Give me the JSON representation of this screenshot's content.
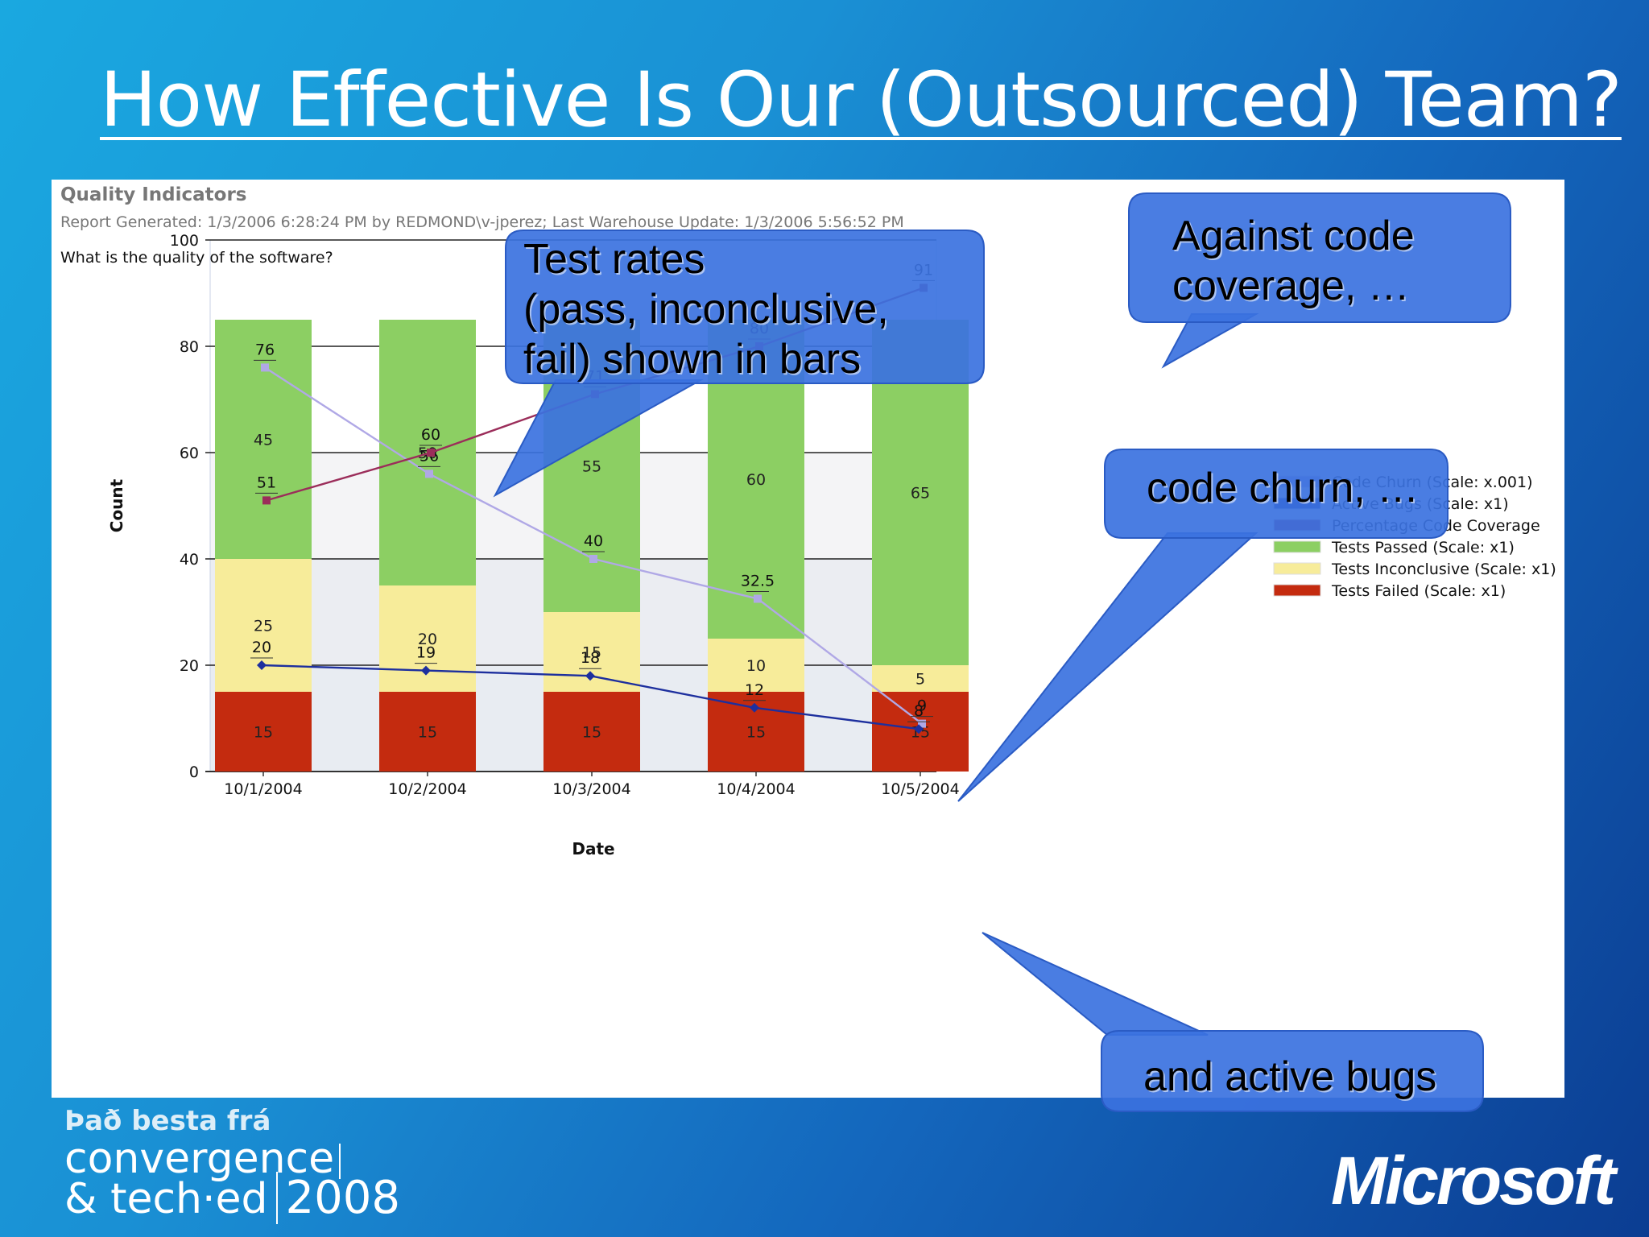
{
  "slide": {
    "title": "How Effective Is Our (Outsourced) Team?"
  },
  "report": {
    "title": "Quality Indicators",
    "meta": "Report Generated: 1/3/2006 6:28:24 PM by REDMOND\\v-jperez; Last Warehouse Update: 1/3/2006 5:56:52 PM",
    "question": "What is the quality of the software?"
  },
  "callouts": [
    {
      "id": "test-rates",
      "lines": [
        "Test rates",
        "(pass, inconclusive,",
        "fail) shown in bars"
      ]
    },
    {
      "id": "code-coverage",
      "lines": [
        "Against code",
        "coverage, …"
      ]
    },
    {
      "id": "code-churn",
      "lines": [
        "code churn, …"
      ]
    },
    {
      "id": "active-bugs",
      "lines": [
        "and active bugs"
      ]
    }
  ],
  "branding": {
    "tagline": "Það besta frá",
    "line1": "convergence",
    "line2": "& tech·ed",
    "year": "2008",
    "company": "Microsoft"
  },
  "colors": {
    "passed": "#8ccf63",
    "inconclusive": "#f7ec9a",
    "failed": "#c42b0f",
    "churn": "#b0a8e6",
    "bugs": "#1d2f9e",
    "coverage": "#9b2d5a",
    "callout": "#3b72e0"
  },
  "chart_data": {
    "type": "bar",
    "stacked": true,
    "xlabel": "Date",
    "ylabel": "Count",
    "ylim": [
      0,
      100
    ],
    "yticks": [
      0,
      20,
      40,
      60,
      80,
      100
    ],
    "grid": true,
    "legend_position": "right",
    "categories": [
      "10/1/2004",
      "10/2/2004",
      "10/3/2004",
      "10/4/2004",
      "10/5/2004"
    ],
    "bar_series": [
      {
        "name": "Tests Failed (Scale: x1)",
        "color_key": "failed",
        "values": [
          15,
          15,
          15,
          15,
          15
        ]
      },
      {
        "name": "Tests Inconclusive (Scale: x1)",
        "color_key": "inconclusive",
        "values": [
          25,
          20,
          15,
          10,
          5
        ]
      },
      {
        "name": "Tests Passed (Scale: x1)",
        "color_key": "passed",
        "values": [
          45,
          50,
          55,
          60,
          65
        ]
      }
    ],
    "line_series": [
      {
        "name": "Code Churn (Scale: x.001)",
        "color_key": "churn",
        "values": [
          76,
          56,
          40,
          32.5,
          9
        ]
      },
      {
        "name": "Active Bugs (Scale: x1)",
        "color_key": "bugs",
        "values": [
          20,
          19,
          18,
          12,
          8
        ]
      },
      {
        "name": "Percentage Code Coverage",
        "color_key": "coverage",
        "values": [
          51,
          60,
          71,
          80,
          91
        ]
      }
    ],
    "legend_order": [
      "Code Churn (Scale: x.001)",
      "Active Bugs (Scale: x1)",
      "Percentage Code Coverage",
      "Tests Passed (Scale: x1)",
      "Tests Inconclusive (Scale: x1)",
      "Tests Failed (Scale: x1)"
    ]
  }
}
